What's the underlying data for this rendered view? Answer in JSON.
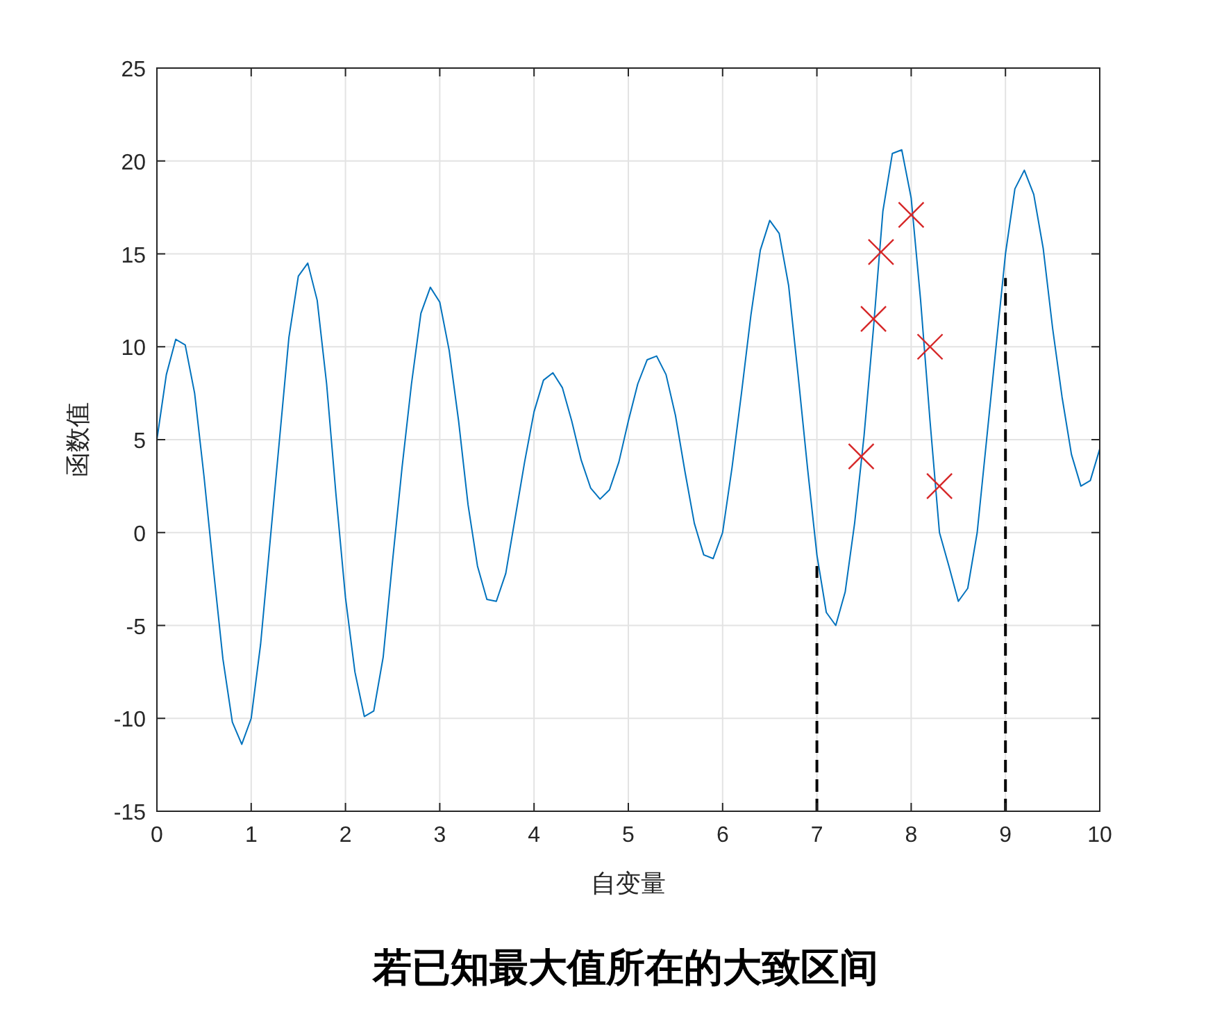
{
  "chart_data": {
    "type": "line",
    "title": "若已知最大值所在的大致区间",
    "xlabel": "自变量",
    "ylabel": "函数值",
    "xlim": [
      0,
      10
    ],
    "ylim": [
      -15,
      25
    ],
    "xticks": [
      0,
      1,
      2,
      3,
      4,
      5,
      6,
      7,
      8,
      9,
      10
    ],
    "yticks": [
      -15,
      -10,
      -5,
      0,
      5,
      10,
      15,
      20,
      25
    ],
    "grid": true,
    "series": [
      {
        "color": "#0072bd",
        "line_style": "solid",
        "x": [
          0,
          0.1,
          0.2,
          0.3,
          0.4,
          0.5,
          0.6,
          0.7,
          0.8,
          0.9,
          1.0,
          1.1,
          1.2,
          1.3,
          1.4,
          1.5,
          1.6,
          1.7,
          1.8,
          1.9,
          2.0,
          2.1,
          2.2,
          2.3,
          2.4,
          2.5,
          2.6,
          2.7,
          2.8,
          2.9,
          3.0,
          3.1,
          3.2,
          3.3,
          3.4,
          3.5,
          3.6,
          3.7,
          3.8,
          3.9,
          4.0,
          4.1,
          4.2,
          4.3,
          4.4,
          4.5,
          4.6,
          4.7,
          4.8,
          4.9,
          5.0,
          5.1,
          5.2,
          5.3,
          5.4,
          5.5,
          5.6,
          5.7,
          5.8,
          5.9,
          6.0,
          6.1,
          6.2,
          6.3,
          6.4,
          6.5,
          6.6,
          6.7,
          6.8,
          6.9,
          7.0,
          7.1,
          7.2,
          7.3,
          7.4,
          7.5,
          7.6,
          7.7,
          7.8,
          7.9,
          8.0,
          8.1,
          8.2,
          8.3,
          8.4,
          8.5,
          8.6,
          8.7,
          8.8,
          8.9,
          9.0,
          9.1,
          9.2,
          9.3,
          9.4,
          9.5,
          9.6,
          9.7,
          9.8,
          9.9,
          10
        ],
        "values": [
          5,
          8.5,
          10.4,
          10.1,
          7.5,
          3,
          -2,
          -6.8,
          -10.2,
          -11.4,
          -10,
          -6,
          -0.5,
          5,
          10.5,
          13.8,
          14.5,
          12.5,
          8,
          2,
          -3.5,
          -7.5,
          -9.9,
          -9.6,
          -6.7,
          -1.5,
          3.5,
          8,
          11.8,
          13.2,
          12.4,
          9.8,
          6,
          1.5,
          -1.8,
          -3.6,
          -3.7,
          -2.2,
          0.8,
          3.8,
          6.5,
          8.2,
          8.6,
          7.8,
          6,
          3.9,
          2.4,
          1.8,
          2.3,
          3.8,
          6,
          8,
          9.3,
          9.5,
          8.5,
          6.3,
          3.3,
          0.5,
          -1.2,
          -1.4,
          0,
          3.5,
          7.5,
          11.7,
          15.2,
          16.8,
          16.1,
          13.3,
          8.5,
          3.5,
          -1.2,
          -4.3,
          -5,
          -3.2,
          0.5,
          5.2,
          11,
          17.3,
          20.4,
          20.6,
          18,
          12.5,
          6,
          0,
          -1.8,
          -3.7,
          -3,
          0,
          5,
          10,
          15,
          18.5,
          19.5,
          18.2,
          15.3,
          11,
          7.3,
          4.2,
          2.5,
          2.8,
          4.5
        ]
      },
      {
        "type": "scatter",
        "color": "#d62728",
        "marker": "cross",
        "x": [
          7.47,
          7.6,
          7.68,
          8.0,
          8.2,
          8.3
        ],
        "values": [
          4.1,
          11.5,
          15.1,
          17.1,
          10.0,
          2.5
        ]
      },
      {
        "color": "#000000",
        "line_style": "dashed",
        "x": [
          7,
          7
        ],
        "values": [
          -15,
          -1.8
        ]
      },
      {
        "color": "#000000",
        "line_style": "dashed",
        "x": [
          9,
          9
        ],
        "values": [
          -15,
          13.7
        ]
      }
    ]
  }
}
